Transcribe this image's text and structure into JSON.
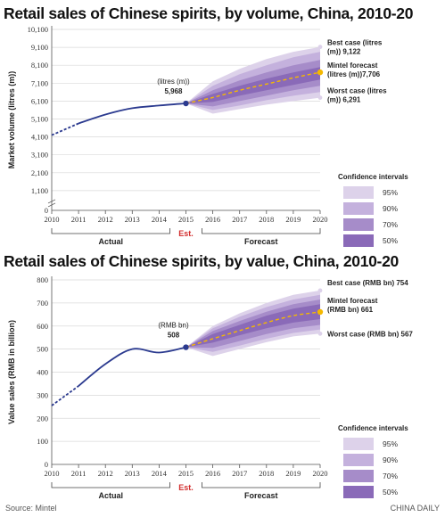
{
  "chart_data": [
    {
      "type": "line",
      "title": "Retail sales of Chinese spirits, by volume, China, 2010-20",
      "ylabel": "Market volume (litres (m))",
      "yticks": [
        "0",
        "1,100",
        "2,100",
        "3,100",
        "4,100",
        "5,100",
        "6,100",
        "7,100",
        "8,100",
        "9,100",
        "10,100"
      ],
      "ylim": [
        0,
        10100
      ],
      "x": [
        "2010",
        "2011",
        "2012",
        "2013",
        "2014",
        "2015",
        "2016",
        "2017",
        "2018",
        "2019",
        "2020"
      ],
      "series": [
        {
          "name": "Actual",
          "values": [
            4200,
            4850,
            5350,
            5700,
            5850,
            5968,
            null,
            null,
            null,
            null,
            null
          ]
        },
        {
          "name": "Mintel forecast",
          "values": [
            null,
            null,
            null,
            null,
            null,
            5968,
            6300,
            6700,
            7050,
            7400,
            7706
          ]
        },
        {
          "name": "Best case",
          "values": [
            null,
            null,
            null,
            null,
            null,
            5968,
            7200,
            7900,
            8450,
            8850,
            9122
          ]
        },
        {
          "name": "Worst case",
          "values": [
            null,
            null,
            null,
            null,
            null,
            5968,
            5400,
            5650,
            5900,
            6100,
            6291
          ]
        }
      ],
      "bands_upper": {
        "b50": [
          5968,
          6500,
          6950,
          7350,
          7700,
          8000
        ],
        "b70": [
          5968,
          6700,
          7250,
          7700,
          8100,
          8400
        ],
        "b90": [
          5968,
          6950,
          7600,
          8100,
          8550,
          8850
        ],
        "b95": [
          5968,
          7200,
          7900,
          8450,
          8850,
          9122
        ]
      },
      "bands_lower": {
        "b50": [
          5968,
          6050,
          6400,
          6700,
          7000,
          7300
        ],
        "b70": [
          5968,
          5800,
          6100,
          6400,
          6700,
          6950
        ],
        "b90": [
          5968,
          5600,
          5850,
          6150,
          6400,
          6600
        ],
        "b95": [
          5968,
          5400,
          5650,
          5900,
          6100,
          6291
        ]
      },
      "annotations": {
        "current_line1": "(litres (m))",
        "current_line2": "5,968",
        "best_line1": "Best case (litres",
        "best_line2": "(m)) 9,122",
        "forecast_line1": "Mintel forecast",
        "forecast_line2": "(litres (m))7,706",
        "worst_line1": "Worst case (litres",
        "worst_line2": "(m)) 6,291"
      },
      "sections": {
        "actual": "Actual",
        "est": "Est.",
        "forecast": "Forecast"
      },
      "legend": {
        "title": "Confidence intervals",
        "items": [
          "95%",
          "90%",
          "70%",
          "50%"
        ]
      }
    },
    {
      "type": "line",
      "title": "Retail sales of Chinese spirits, by value, China, 2010-20",
      "ylabel": "Value sales (RMB in billion)",
      "yticks": [
        "0",
        "100",
        "200",
        "300",
        "400",
        "500",
        "600",
        "700",
        "800"
      ],
      "ylim": [
        0,
        800
      ],
      "x": [
        "2010",
        "2011",
        "2012",
        "2013",
        "2014",
        "2015",
        "2016",
        "2017",
        "2018",
        "2019",
        "2020"
      ],
      "series": [
        {
          "name": "Actual",
          "values": [
            255,
            340,
            435,
            500,
            485,
            508,
            null,
            null,
            null,
            null,
            null
          ]
        },
        {
          "name": "Mintel forecast",
          "values": [
            null,
            null,
            null,
            null,
            null,
            508,
            545,
            580,
            615,
            645,
            661
          ]
        },
        {
          "name": "Best case",
          "values": [
            null,
            null,
            null,
            null,
            null,
            508,
            600,
            655,
            700,
            735,
            754
          ]
        },
        {
          "name": "Worst case",
          "values": [
            null,
            null,
            null,
            null,
            null,
            508,
            470,
            500,
            530,
            555,
            567
          ]
        }
      ],
      "bands_upper": {
        "b50": [
          508,
          565,
          605,
          645,
          675,
          695
        ],
        "b70": [
          508,
          578,
          622,
          662,
          695,
          715
        ],
        "b90": [
          508,
          590,
          640,
          682,
          715,
          735
        ],
        "b95": [
          508,
          600,
          655,
          700,
          735,
          754
        ]
      },
      "bands_lower": {
        "b50": [
          508,
          528,
          560,
          590,
          615,
          630
        ],
        "b70": [
          508,
          505,
          535,
          565,
          590,
          605
        ],
        "b90": [
          508,
          488,
          515,
          545,
          570,
          585
        ],
        "b95": [
          508,
          470,
          500,
          530,
          555,
          567
        ]
      },
      "annotations": {
        "current_line1": "(RMB bn)",
        "current_line2": "508",
        "best_line1": "Best case (RMB bn) 754",
        "best_line2": "",
        "forecast_line1": "Mintel forecast",
        "forecast_line2": "(RMB bn) 661",
        "worst_line1": "Worst case (RMB bn) 567",
        "worst_line2": ""
      },
      "sections": {
        "actual": "Actual",
        "est": "Est.",
        "forecast": "Forecast"
      },
      "legend": {
        "title": "Confidence intervals",
        "items": [
          "95%",
          "90%",
          "70%",
          "50%"
        ]
      }
    }
  ],
  "colors": {
    "actual_line": "#2b3a8f",
    "forecast_line": "#f5b800",
    "band95": "#ddd2ea",
    "band90": "#c4b1dd",
    "band70": "#a68cc9",
    "band50": "#8a6ab8",
    "est": "#d32f2f"
  },
  "footer": {
    "source": "Source: Mintel",
    "credit": "CHINA DAILY"
  }
}
